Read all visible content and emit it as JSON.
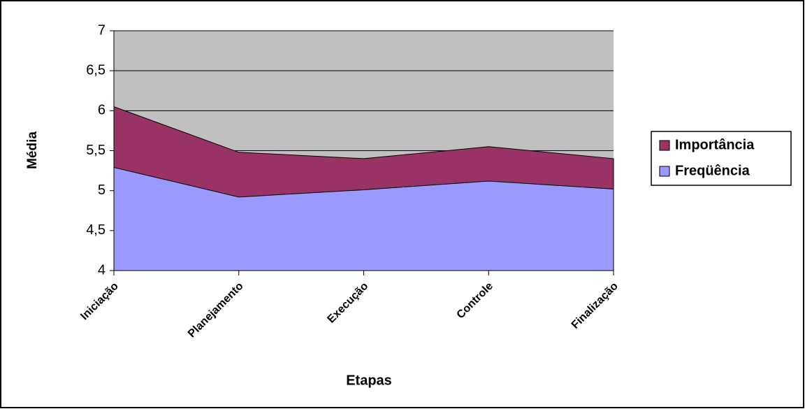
{
  "chart_data": {
    "type": "area",
    "categories": [
      "Iniciação",
      "Planejamento",
      "Execução",
      "Controle",
      "Finalização"
    ],
    "series": [
      {
        "name": "Importância",
        "color": "#993366",
        "values": [
          6.05,
          5.48,
          5.4,
          5.55,
          5.4
        ]
      },
      {
        "name": "Freqüência",
        "color": "#9999ff",
        "values": [
          5.29,
          4.92,
          5.01,
          5.12,
          5.02
        ]
      }
    ],
    "ylim": [
      4,
      7
    ],
    "yticks": [
      4,
      {
        "value": 4.5,
        "label": "4,5"
      },
      5,
      {
        "value": 5.5,
        "label": "5,5"
      },
      6,
      {
        "value": 6.5,
        "label": "6,5"
      },
      7
    ],
    "xlabel": "Etapas",
    "ylabel": "Média",
    "grid": true,
    "plot_background": "#c0c0c0",
    "legend": "right"
  }
}
